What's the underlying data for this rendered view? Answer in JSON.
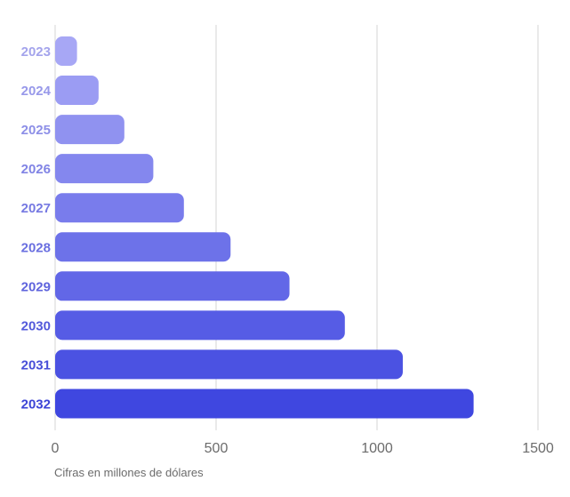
{
  "chart_data": {
    "type": "bar",
    "orientation": "horizontal",
    "categories": [
      "2023",
      "2024",
      "2025",
      "2026",
      "2027",
      "2028",
      "2029",
      "2030",
      "2031",
      "2032"
    ],
    "values": [
      68,
      135,
      215,
      305,
      400,
      545,
      728,
      900,
      1080,
      1300
    ],
    "xlim": [
      0,
      1500
    ],
    "xticks": [
      "0",
      "500",
      "1000",
      "1500"
    ],
    "grid": true,
    "legend": "none",
    "colors": {
      "bar_start": "#a7a7f5",
      "bar_end": "#3f47e0",
      "label_start": "#a4a4ec",
      "label_end": "#3c44d6",
      "grid": "#d4d4d4",
      "tick": "#6b6b6b"
    }
  },
  "note": "Cifras en millones de dólares"
}
